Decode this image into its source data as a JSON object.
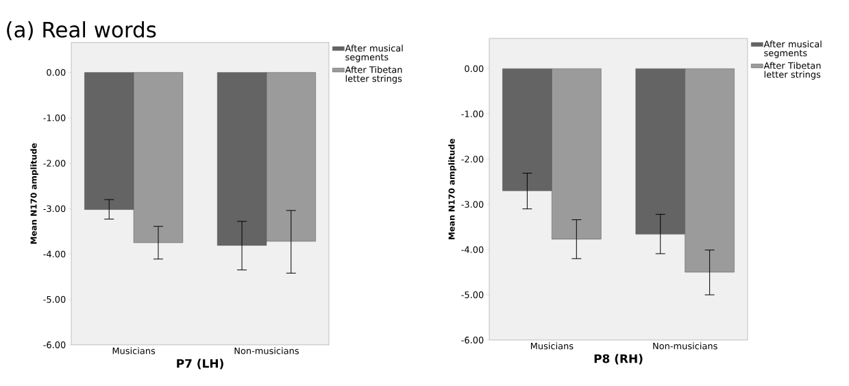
{
  "chart_data": [
    {
      "type": "bar",
      "title": "(a) Real words",
      "xlabel": "P7 (LH)",
      "ylabel": "Mean N170 amplitude",
      "categories": [
        "Musicians",
        "Non-musicians"
      ],
      "series": [
        {
          "name": "After musical segments",
          "color": "#646464",
          "values": [
            -3.02,
            -3.81
          ],
          "errors": [
            [
              -3.23,
              -2.8
            ],
            [
              -4.35,
              -3.28
            ]
          ]
        },
        {
          "name": "After Tibetan letter strings",
          "color": "#9b9b9b",
          "values": [
            -3.75,
            -3.72
          ],
          "errors": [
            [
              -4.11,
              -3.39
            ],
            [
              -4.42,
              -3.04
            ]
          ]
        }
      ],
      "ylim": [
        -6,
        0.66
      ],
      "yticks": [
        {
          "value": 0,
          "label": "0.00"
        },
        {
          "value": -1,
          "label": "-1.00"
        },
        {
          "value": -2,
          "label": "-2.00"
        },
        {
          "value": -3,
          "label": "-3.00"
        },
        {
          "value": -4,
          "label": "-4.00"
        },
        {
          "value": -5,
          "label": "-5.00"
        },
        {
          "value": -6,
          "label": "-6.00"
        }
      ],
      "legend": "top right",
      "grid": false
    },
    {
      "type": "bar",
      "xlabel": "P8 (RH)",
      "ylabel": "Mean N170 amplitude",
      "categories": [
        "Musicians",
        "Non-musicians"
      ],
      "series": [
        {
          "name": "After musical segments",
          "color": "#646464",
          "values": [
            -2.7,
            -3.66
          ],
          "errors": [
            [
              -3.1,
              -2.31
            ],
            [
              -4.09,
              -3.22
            ]
          ]
        },
        {
          "name": "After Tibetan letter strings",
          "color": "#9b9b9b",
          "values": [
            -3.77,
            -4.5
          ],
          "errors": [
            [
              -4.2,
              -3.34
            ],
            [
              -5.0,
              -4.01
            ]
          ]
        }
      ],
      "ylim": [
        -6,
        0.67
      ],
      "yticks": [
        {
          "value": 0,
          "label": "0.00"
        },
        {
          "value": -1,
          "label": "-1.00"
        },
        {
          "value": -2,
          "label": "-2.00"
        },
        {
          "value": -3,
          "label": "-3.00"
        },
        {
          "value": -4,
          "label": "-4.00"
        },
        {
          "value": -5,
          "label": "-5.00"
        },
        {
          "value": -6,
          "label": "-6.00"
        }
      ],
      "legend": "top right",
      "grid": false
    }
  ]
}
